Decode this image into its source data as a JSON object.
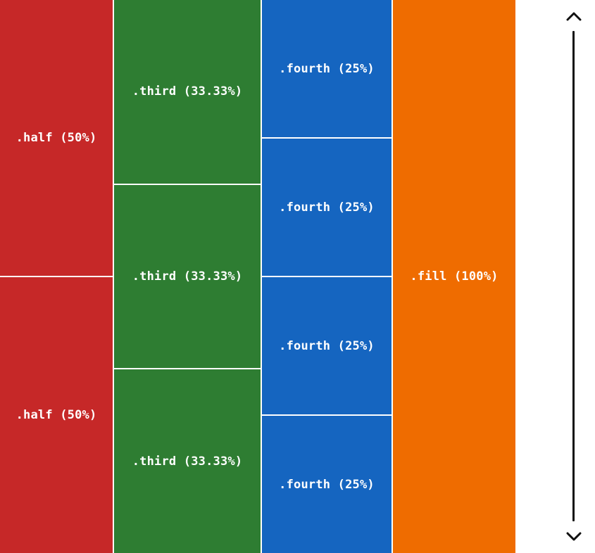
{
  "colors": {
    "half": "#c62828",
    "third": "#2e7d32",
    "fourth": "#1565c0",
    "fill": "#ef6c00",
    "scrollbar": "#111111"
  },
  "columns": {
    "half": [
      "​.half (50%)",
      ".half (50%)"
    ],
    "third": [
      ".third (33.33%)",
      ".third (33.33%)",
      ".third (33.33%)"
    ],
    "fourth": [
      ".fourth (25%)",
      ".fourth (25%)",
      ".fourth (25%)",
      ".fourth (25%)"
    ],
    "fill": [
      ".fill (100%)"
    ]
  },
  "scrollbar": {
    "up_icon": "chevron-up-icon",
    "down_icon": "chevron-down-icon"
  }
}
